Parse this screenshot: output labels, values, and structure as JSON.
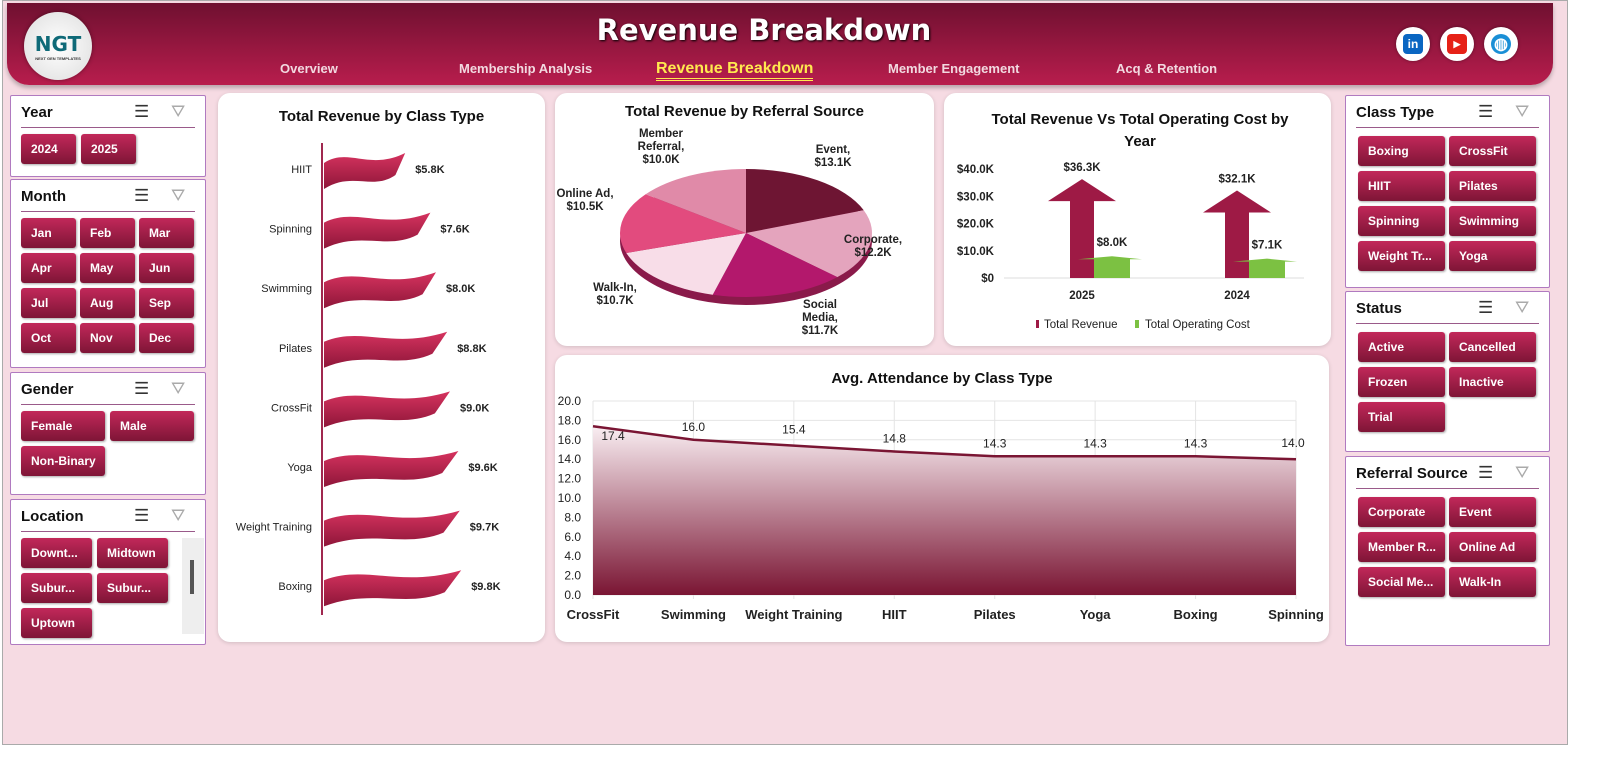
{
  "header": {
    "title": "Revenue Breakdown",
    "logo_text": "NGT",
    "logo_sub": "NEXT GEN TEMPLATES",
    "nav": [
      {
        "label": "Overview",
        "active": false
      },
      {
        "label": "Membership Analysis",
        "active": false
      },
      {
        "label": "Revenue Breakdown",
        "active": true
      },
      {
        "label": "Member Engagement",
        "active": false
      },
      {
        "label": "Acq & Retention",
        "active": false
      }
    ],
    "social": [
      {
        "icon": "linkedin-icon",
        "glyph": "in",
        "color": "#0a66c2"
      },
      {
        "icon": "youtube-icon",
        "glyph": "▶",
        "color": "#e62117"
      },
      {
        "icon": "globe-icon",
        "glyph": "◍",
        "color": "#1a8fd6"
      }
    ]
  },
  "slicers": {
    "year": {
      "title": "Year",
      "items": [
        "2024",
        "2025"
      ]
    },
    "month": {
      "title": "Month",
      "items": [
        "Jan",
        "Feb",
        "Mar",
        "Apr",
        "May",
        "Jun",
        "Jul",
        "Aug",
        "Sep",
        "Oct",
        "Nov",
        "Dec"
      ]
    },
    "gender": {
      "title": "Gender",
      "items": [
        "Female",
        "Male",
        "Non-Binary"
      ]
    },
    "location": {
      "title": "Location",
      "items": [
        "Downt...",
        "Midtown",
        "Subur...",
        "Subur...",
        "Uptown"
      ]
    },
    "class_type": {
      "title": "Class Type",
      "items": [
        "Boxing",
        "CrossFit",
        "HIIT",
        "Pilates",
        "Spinning",
        "Swimming",
        "Weight Tr...",
        "Yoga"
      ]
    },
    "status": {
      "title": "Status",
      "items": [
        "Active",
        "Cancelled",
        "Frozen",
        "Inactive",
        "Trial"
      ]
    },
    "referral": {
      "title": "Referral Source",
      "items": [
        "Corporate",
        "Event",
        "Member R...",
        "Online Ad",
        "Social Me...",
        "Walk-In"
      ]
    }
  },
  "chart_data": [
    {
      "type": "bar",
      "title": "Total Revenue  by Class Type",
      "orientation": "horizontal",
      "categories": [
        "HIIT",
        "Spinning",
        "Swimming",
        "Pilates",
        "CrossFit",
        "Yoga",
        "Weight Training",
        "Boxing"
      ],
      "values": [
        5.8,
        7.6,
        8.0,
        8.8,
        9.0,
        9.6,
        9.7,
        9.8
      ],
      "labels": [
        "$5.8K",
        "$7.6K",
        "$8.0K",
        "$8.8K",
        "$9.0K",
        "$9.6K",
        "$9.7K",
        "$9.8K"
      ],
      "unit": "$K",
      "color": "#b81d4d"
    },
    {
      "type": "pie",
      "title": "Total Revenue by Referral Source",
      "categories": [
        "Event",
        "Corporate",
        "Social Media",
        "Walk-In",
        "Online Ad",
        "Member Referral"
      ],
      "values": [
        13.1,
        12.2,
        11.7,
        10.7,
        10.5,
        10.0
      ],
      "labels": [
        [
          "Event,",
          "$13.1K"
        ],
        [
          "Corporate,",
          "$12.2K"
        ],
        [
          "Social",
          "Media,",
          "$11.7K"
        ],
        [
          "Walk-In,",
          "$10.7K"
        ],
        [
          "Online Ad,",
          "$10.5K"
        ],
        [
          "Member",
          "Referral,",
          "$10.0K"
        ]
      ],
      "colors": [
        "#6e1533",
        "#e4a4bd",
        "#b3186c",
        "#f8dde8",
        "#e24b7e",
        "#e08aa8"
      ]
    },
    {
      "type": "bar",
      "title": "Total Revenue  Vs Total Operating Cost by Year",
      "categories": [
        "2025",
        "2024"
      ],
      "series": [
        {
          "name": "Total Revenue",
          "values": [
            36.3,
            32.1
          ],
          "labels": [
            "$36.3K",
            "$32.1K"
          ],
          "color": "#9e1a45"
        },
        {
          "name": "Total Operating Cost",
          "values": [
            8.0,
            7.1
          ],
          "labels": [
            "$8.0K",
            "$7.1K"
          ],
          "color": "#7cc142"
        }
      ],
      "ylim": [
        0,
        40
      ],
      "yticks": [
        "$0",
        "$10.0K",
        "$20.0K",
        "$30.0K",
        "$40.0K"
      ],
      "legend": "bottom"
    },
    {
      "type": "area",
      "title": "Avg. Attendance by Class Type",
      "categories": [
        "CrossFit",
        "Swimming",
        "Weight Training",
        "HIIT",
        "Pilates",
        "Yoga",
        "Boxing",
        "Spinning"
      ],
      "values": [
        17.4,
        16.0,
        15.4,
        14.8,
        14.3,
        14.3,
        14.3,
        14.0
      ],
      "ylim": [
        0,
        20
      ],
      "yticks": [
        "0.0",
        "2.0",
        "4.0",
        "6.0",
        "8.0",
        "10.0",
        "12.0",
        "14.0",
        "16.0",
        "18.0",
        "20.0"
      ],
      "grid": true,
      "color": "#7a1533"
    }
  ]
}
